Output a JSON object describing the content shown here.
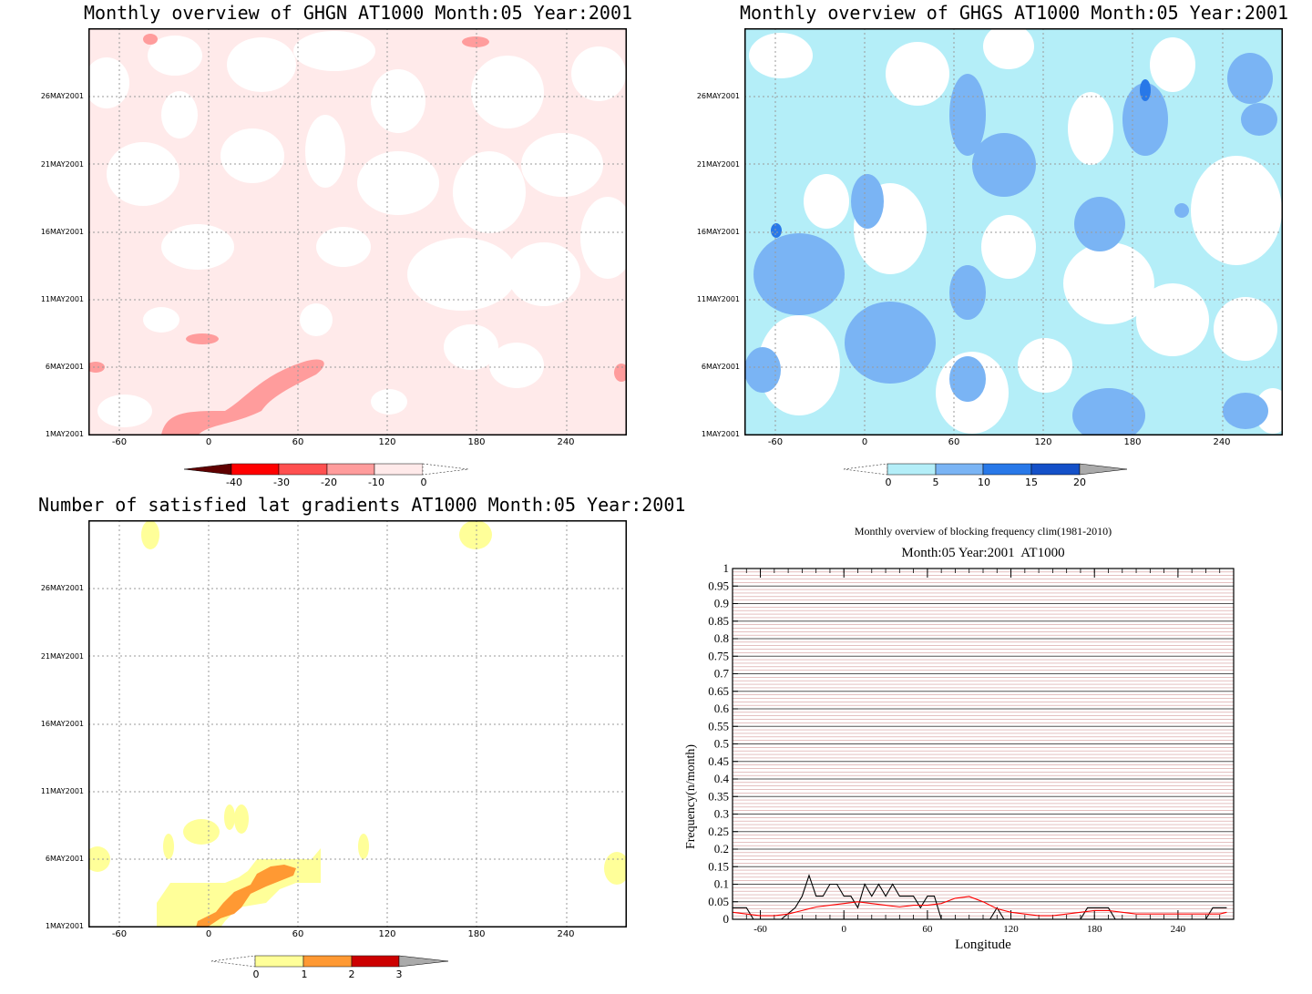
{
  "panels": [
    {
      "id": "ghgn",
      "title": "Monthly overview of GHGN AT1000 Month:05 Year:2001",
      "ytick_labels": [
        "1MAY2001",
        "6MAY2001",
        "11MAY2001",
        "16MAY2001",
        "21MAY2001",
        "26MAY2001"
      ],
      "xtick_labels": [
        "-60",
        "0",
        "60",
        "120",
        "180",
        "240"
      ],
      "colorbar_labels": [
        "-40",
        "-30",
        "-20",
        "-10",
        "0"
      ],
      "colors": {
        "base": "#ffeaea",
        "light": "#ffffff",
        "medium": "#ff9c9c",
        "strong": "#ff5050"
      }
    },
    {
      "id": "ghgs",
      "title": "Monthly overview of GHGS AT1000 Month:05 Year:2001",
      "ytick_labels": [
        "1MAY2001",
        "6MAY2001",
        "11MAY2001",
        "16MAY2001",
        "21MAY2001",
        "26MAY2001"
      ],
      "xtick_labels": [
        "-60",
        "0",
        "60",
        "120",
        "180",
        "240"
      ],
      "colorbar_labels": [
        "0",
        "5",
        "10",
        "15",
        "20"
      ],
      "colors": {
        "base": "#b4eef8",
        "light": "#ffffff",
        "medium": "#7ab4f4",
        "strong": "#2878e8"
      }
    },
    {
      "id": "latgrad",
      "title": "Number of satisfied lat gradients AT1000 Month:05 Year:2001",
      "ytick_labels": [
        "1MAY2001",
        "6MAY2001",
        "11MAY2001",
        "16MAY2001",
        "21MAY2001",
        "26MAY2001"
      ],
      "xtick_labels": [
        "-60",
        "0",
        "60",
        "120",
        "180",
        "240"
      ],
      "colorbar_labels": [
        "0",
        "1",
        "2",
        "3"
      ],
      "colors": {
        "c1": "#ffff99",
        "c2": "#ff9933",
        "c3": "#cc0000"
      }
    }
  ],
  "chart_data": [
    {
      "type": "heatmap",
      "title": "Monthly overview of GHGN AT1000 Month:05 Year:2001",
      "x_range": [
        -80,
        280
      ],
      "y_range": [
        "1MAY2001",
        "31MAY2001"
      ],
      "color_levels": [
        -40,
        -30,
        -20,
        -10,
        0
      ],
      "colors": [
        "#600000",
        "#ff0000",
        "#ff5050",
        "#ff9c9c",
        "#ffeaea"
      ],
      "note_values": "predominantly -10 to 0 with small patches down to -20 near 1-6MAY2001 between longitude -30 and 80"
    },
    {
      "type": "heatmap",
      "title": "Monthly overview of GHGS AT1000 Month:05 Year:2001",
      "x_range": [
        -80,
        280
      ],
      "y_range": [
        "1MAY2001",
        "31MAY2001"
      ],
      "color_levels": [
        0,
        5,
        10,
        15,
        20
      ],
      "colors": [
        "#b4eef8",
        "#7ab4f4",
        "#2878e8",
        "#1450c8",
        "#aaaaaa"
      ]
    },
    {
      "type": "heatmap",
      "title": "Number of satisfied lat gradients AT1000 Month:05 Year:2001",
      "x_range": [
        -80,
        280
      ],
      "y_range": [
        "1MAY2001",
        "31MAY2001"
      ],
      "color_levels": [
        0,
        1,
        2,
        3
      ],
      "colors": [
        "#ffff99",
        "#ff9933",
        "#cc0000",
        "#aaaaaa"
      ]
    },
    {
      "type": "line",
      "title": "Monthly overview of blocking frequency clim(1981-2010)",
      "subtitle": "Month:05 Year:2001  AT1000",
      "xlabel": "Longitude",
      "ylabel": "Frequency(n/month)",
      "xlim": [
        -80,
        280
      ],
      "ylim": [
        0,
        1
      ],
      "xticks": [
        "-60",
        "0",
        "60",
        "120",
        "180",
        "240"
      ],
      "yticks": [
        "0",
        "0.05",
        "0.1",
        "0.15",
        "0.2",
        "0.25",
        "0.3",
        "0.35",
        "0.4",
        "0.45",
        "0.5",
        "0.55",
        "0.6",
        "0.65",
        "0.7",
        "0.75",
        "0.8",
        "0.85",
        "0.9",
        "0.95",
        "1"
      ],
      "series": [
        {
          "color": "#000000",
          "x": [
            -80,
            -70,
            -65,
            -55,
            -45,
            -35,
            -30,
            -25,
            -20,
            -15,
            -10,
            -5,
            0,
            5,
            10,
            15,
            20,
            25,
            30,
            35,
            40,
            45,
            50,
            55,
            60,
            65,
            70,
            75,
            80,
            85,
            90,
            95,
            100,
            105,
            110,
            115,
            120,
            125,
            130,
            135,
            140,
            145,
            150,
            155,
            160,
            165,
            170,
            175,
            180,
            185,
            190,
            195,
            200,
            205,
            210,
            215,
            220,
            225,
            230,
            235,
            240,
            245,
            250,
            255,
            260,
            265,
            270,
            275
          ],
          "y": [
            0.033,
            0.033,
            0,
            0,
            0,
            0.033,
            0.066,
            0.125,
            0.066,
            0.066,
            0.1,
            0.1,
            0.066,
            0.066,
            0.033,
            0.1,
            0.066,
            0.1,
            0.066,
            0.1,
            0.066,
            0.066,
            0.066,
            0.033,
            0.066,
            0.066,
            0,
            0,
            0,
            0,
            0,
            0,
            0,
            0,
            0.033,
            0,
            0,
            0,
            0,
            0,
            0,
            0,
            0,
            0,
            0,
            0,
            0,
            0.033,
            0.033,
            0.033,
            0.033,
            0,
            0,
            0,
            0,
            0,
            0,
            0,
            0,
            0,
            0,
            0,
            0,
            0,
            0,
            0.033,
            0.033,
            0.033
          ]
        },
        {
          "color": "#ff0000",
          "x": [
            -80,
            -70,
            -60,
            -50,
            -40,
            -30,
            -20,
            -10,
            0,
            10,
            20,
            30,
            40,
            50,
            60,
            70,
            80,
            90,
            100,
            110,
            120,
            130,
            140,
            150,
            160,
            170,
            180,
            190,
            200,
            210,
            220,
            230,
            240,
            250,
            260,
            270,
            275
          ],
          "y": [
            0.02,
            0.015,
            0.01,
            0.01,
            0.015,
            0.025,
            0.035,
            0.04,
            0.045,
            0.05,
            0.045,
            0.04,
            0.035,
            0.04,
            0.04,
            0.045,
            0.06,
            0.065,
            0.05,
            0.03,
            0.02,
            0.015,
            0.01,
            0.01,
            0.015,
            0.02,
            0.025,
            0.025,
            0.02,
            0.015,
            0.015,
            0.015,
            0.015,
            0.015,
            0.015,
            0.015,
            0.02
          ]
        }
      ]
    }
  ]
}
